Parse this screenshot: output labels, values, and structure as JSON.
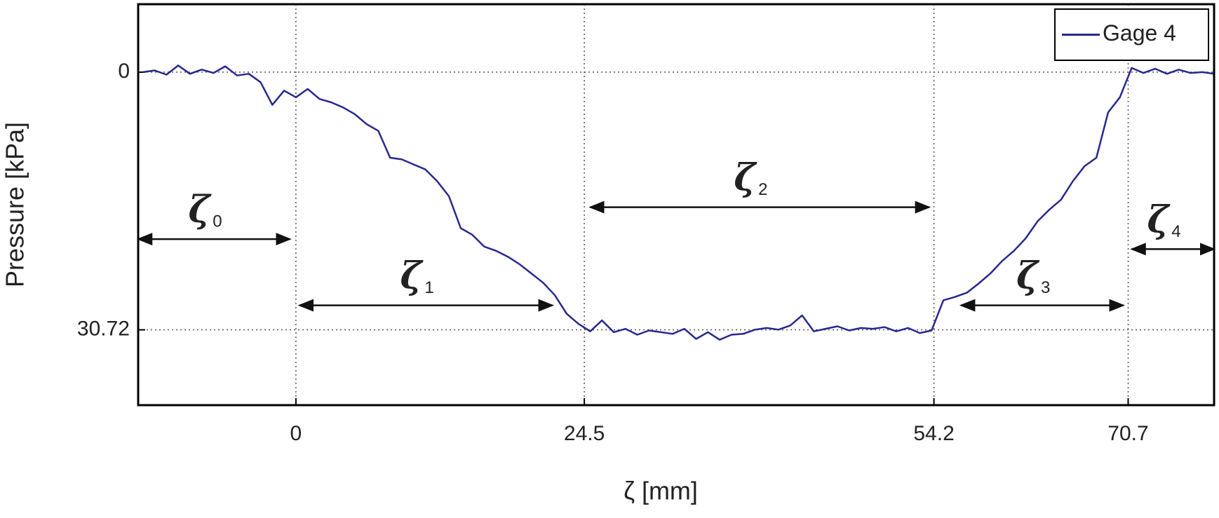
{
  "chart_data": {
    "type": "line",
    "xlabel": "ζ [mm]",
    "ylabel": "Pressure [kPa]",
    "x": [
      -13,
      -12,
      -11,
      -10,
      -9,
      -8,
      -7,
      -6,
      -5,
      -4,
      -3,
      -2,
      -1,
      0,
      1,
      2,
      3,
      4,
      5,
      6,
      7,
      8,
      9,
      10,
      11,
      12,
      13,
      14,
      15,
      16,
      17,
      18,
      19,
      20,
      21,
      22,
      23,
      24,
      25,
      26,
      27,
      28,
      29,
      30,
      31,
      32,
      33,
      34,
      35,
      36,
      37,
      38,
      39,
      40,
      41,
      42,
      43,
      44,
      45,
      46,
      47,
      48,
      49,
      50,
      51,
      52,
      53,
      54,
      55,
      56,
      57,
      58,
      59,
      60,
      61,
      62,
      63,
      64,
      65,
      66,
      67,
      68,
      69,
      70,
      71,
      72,
      73,
      74,
      75,
      76,
      77,
      78
    ],
    "series": [
      {
        "name": "Gage 4",
        "color": "#28288f",
        "values": [
          0,
          -0.2,
          0.3,
          -0.8,
          0.2,
          -0.3,
          0.1,
          -0.7,
          0.4,
          0.2,
          1.2,
          3.9,
          2.2,
          3.0,
          2.0,
          3.2,
          3.6,
          4.2,
          5.0,
          6.2,
          7.0,
          10.2,
          10.4,
          11.0,
          11.6,
          13.0,
          14.8,
          18.6,
          19.4,
          20.8,
          21.3,
          22.0,
          22.9,
          24.0,
          25.1,
          26.6,
          28.8,
          30.0,
          30.9,
          29.6,
          31.0,
          30.6,
          31.3,
          30.8,
          31.0,
          31.2,
          30.6,
          31.8,
          31.0,
          31.9,
          31.3,
          31.2,
          30.7,
          30.5,
          30.7,
          30.2,
          29.0,
          30.9,
          30.6,
          30.3,
          30.8,
          30.5,
          30.6,
          30.4,
          30.9,
          30.5,
          31.1,
          30.8,
          27.2,
          26.8,
          26.3,
          25.2,
          24.0,
          22.5,
          21.3,
          19.8,
          17.8,
          16.4,
          15.2,
          13.0,
          11.2,
          10.2,
          4.8,
          3.0,
          -0.5,
          0.1,
          -0.4,
          0.2,
          -0.3,
          0.1,
          0.0,
          0.2
        ]
      }
    ],
    "xlim": [
      -13.4,
      78
    ],
    "xticks": [
      0,
      24.5,
      54.2,
      70.7
    ],
    "ylim": [
      -8.1,
      39.7
    ],
    "y_reversed": true,
    "yticks": [
      0,
      30.72
    ],
    "grid": true,
    "legend": "upper right",
    "annotations": [
      {
        "symbol": "ζ",
        "subscript": "0",
        "from": -13.4,
        "to": -0.5,
        "y": 19.9
      },
      {
        "symbol": "ζ",
        "subscript": "1",
        "from": 0.3,
        "to": 21.8,
        "y": 27.8
      },
      {
        "symbol": "ζ",
        "subscript": "2",
        "from": 25,
        "to": 53.8,
        "y": 16.1
      },
      {
        "symbol": "ζ",
        "subscript": "3",
        "from": 56.5,
        "to": 70.3,
        "y": 27.8
      },
      {
        "symbol": "ζ",
        "subscript": "4",
        "from": 71,
        "to": 78,
        "y": 21.1
      }
    ]
  }
}
